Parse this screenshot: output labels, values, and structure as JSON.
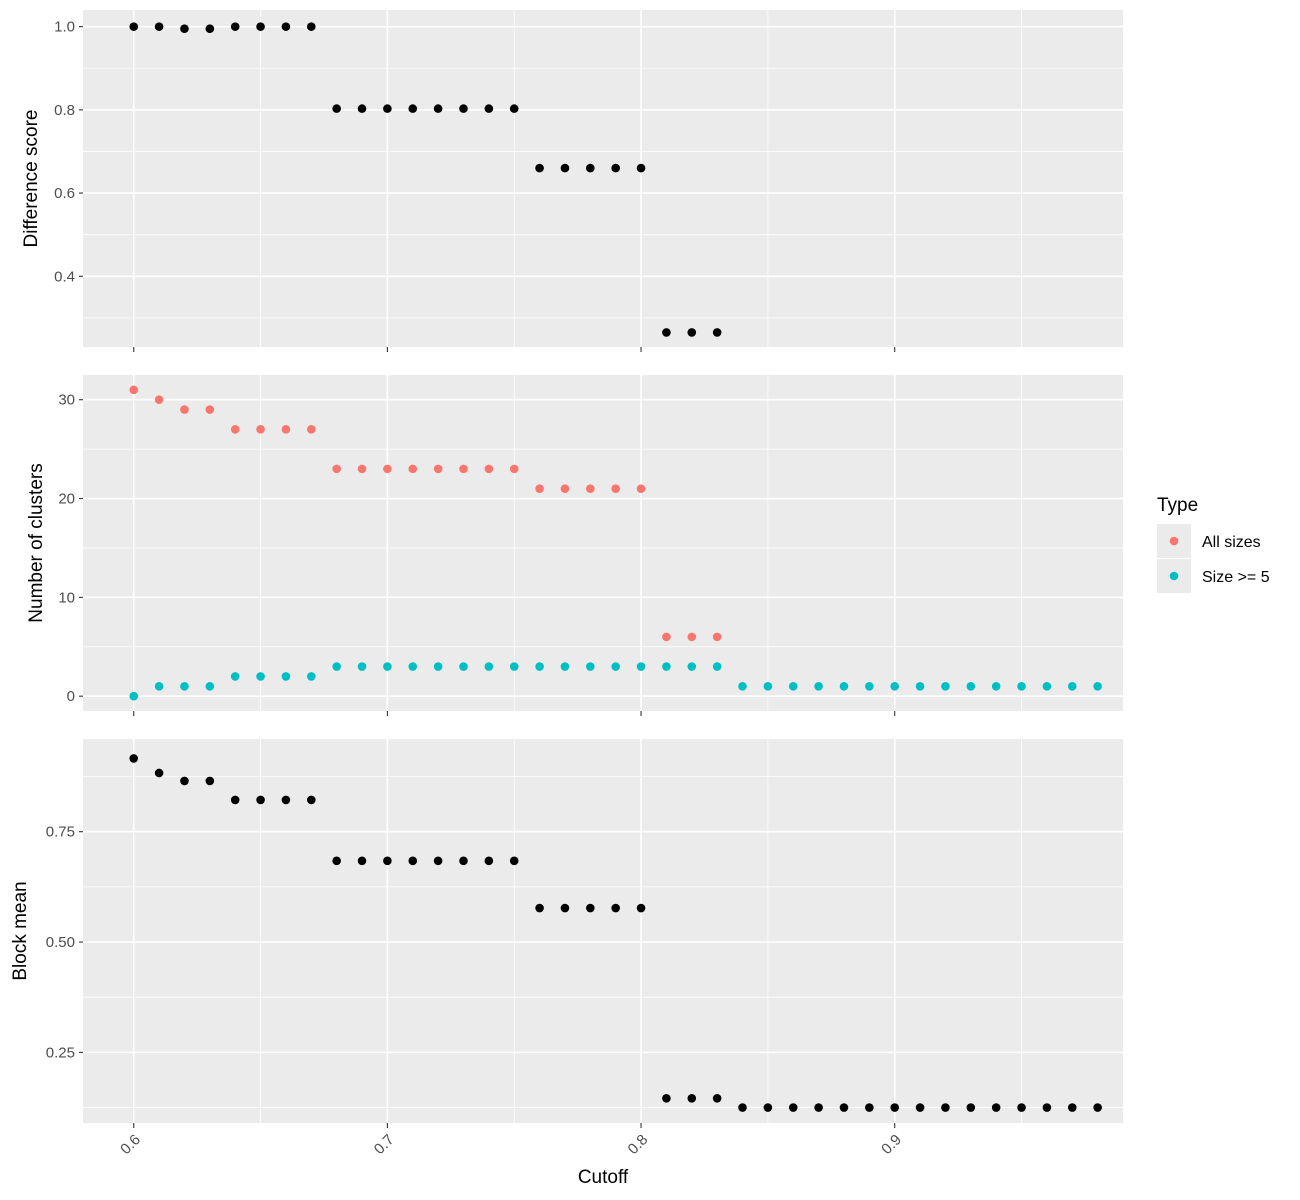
{
  "chart_data": [
    {
      "type": "scatter",
      "panel": "top",
      "ylabel": "Difference score",
      "yticks": [
        0.4,
        0.6,
        0.8,
        1.0
      ],
      "ytick_labels": [
        "0.4",
        "0.6",
        "0.8",
        "1.0"
      ],
      "ylim": [
        0.23,
        1.04
      ],
      "xlim": [
        0.58,
        0.99
      ],
      "grid": true,
      "series": [
        {
          "color": "#000000",
          "x": [
            0.6,
            0.61,
            0.62,
            0.63,
            0.64,
            0.65,
            0.66,
            0.67,
            0.68,
            0.69,
            0.7,
            0.71,
            0.72,
            0.73,
            0.74,
            0.75,
            0.76,
            0.77,
            0.78,
            0.79,
            0.8,
            0.81,
            0.82,
            0.83
          ],
          "y": [
            1.0,
            1.0,
            0.995,
            0.995,
            1.0,
            1.0,
            1.0,
            1.0,
            0.803,
            0.803,
            0.803,
            0.803,
            0.803,
            0.803,
            0.803,
            0.803,
            0.66,
            0.66,
            0.66,
            0.66,
            0.66,
            0.265,
            0.265,
            0.265
          ]
        }
      ]
    },
    {
      "type": "scatter",
      "panel": "middle",
      "ylabel": "Number of clusters",
      "yticks": [
        0,
        10,
        20,
        30
      ],
      "ytick_labels": [
        "0",
        "10",
        "20",
        "30"
      ],
      "ylim": [
        -1.5,
        32.5
      ],
      "xlim": [
        0.58,
        0.99
      ],
      "grid": true,
      "legend": {
        "title": "Type",
        "position": "right"
      },
      "series": [
        {
          "name": "All sizes",
          "color": "#F8766D",
          "x": [
            0.6,
            0.61,
            0.62,
            0.63,
            0.64,
            0.65,
            0.66,
            0.67,
            0.68,
            0.69,
            0.7,
            0.71,
            0.72,
            0.73,
            0.74,
            0.75,
            0.76,
            0.77,
            0.78,
            0.79,
            0.8,
            0.81,
            0.82,
            0.83
          ],
          "y": [
            31,
            30,
            29,
            29,
            27,
            27,
            27,
            27,
            23,
            23,
            23,
            23,
            23,
            23,
            23,
            23,
            21,
            21,
            21,
            21,
            21,
            6,
            6,
            6
          ]
        },
        {
          "name": "Size >= 5",
          "color": "#00BFC4",
          "x": [
            0.6,
            0.61,
            0.62,
            0.63,
            0.64,
            0.65,
            0.66,
            0.67,
            0.68,
            0.69,
            0.7,
            0.71,
            0.72,
            0.73,
            0.74,
            0.75,
            0.76,
            0.77,
            0.78,
            0.79,
            0.8,
            0.81,
            0.82,
            0.83,
            0.84,
            0.85,
            0.86,
            0.87,
            0.88,
            0.89,
            0.9,
            0.91,
            0.92,
            0.93,
            0.94,
            0.95,
            0.96,
            0.97,
            0.98
          ],
          "y": [
            0,
            1,
            1,
            1,
            2,
            2,
            2,
            2,
            3,
            3,
            3,
            3,
            3,
            3,
            3,
            3,
            3,
            3,
            3,
            3,
            3,
            3,
            3,
            3,
            1,
            1,
            1,
            1,
            1,
            1,
            1,
            1,
            1,
            1,
            1,
            1,
            1,
            1,
            1
          ]
        }
      ]
    },
    {
      "type": "scatter",
      "panel": "bottom",
      "ylabel": "Block mean",
      "xlabel": "Cutoff",
      "yticks": [
        0.25,
        0.5,
        0.75
      ],
      "ytick_labels": [
        "0.25",
        "0.50",
        "0.75"
      ],
      "ylim": [
        0.09,
        0.96
      ],
      "xlim": [
        0.58,
        0.99
      ],
      "xticks": [
        0.6,
        0.7,
        0.8,
        0.9
      ],
      "xtick_labels": [
        "0.6",
        "0.7",
        "0.8",
        "0.9"
      ],
      "grid": true,
      "series": [
        {
          "color": "#000000",
          "x": [
            0.6,
            0.61,
            0.62,
            0.63,
            0.64,
            0.65,
            0.66,
            0.67,
            0.68,
            0.69,
            0.7,
            0.71,
            0.72,
            0.73,
            0.74,
            0.75,
            0.76,
            0.77,
            0.78,
            0.79,
            0.8,
            0.81,
            0.82,
            0.83,
            0.84,
            0.85,
            0.86,
            0.87,
            0.88,
            0.89,
            0.9,
            0.91,
            0.92,
            0.93,
            0.94,
            0.95,
            0.96,
            0.97,
            0.98
          ],
          "y": [
            0.916,
            0.883,
            0.865,
            0.865,
            0.822,
            0.822,
            0.822,
            0.822,
            0.684,
            0.684,
            0.684,
            0.684,
            0.684,
            0.684,
            0.684,
            0.684,
            0.577,
            0.577,
            0.577,
            0.577,
            0.577,
            0.146,
            0.146,
            0.146,
            0.125,
            0.125,
            0.125,
            0.125,
            0.125,
            0.125,
            0.125,
            0.125,
            0.125,
            0.125,
            0.125,
            0.125,
            0.125,
            0.125,
            0.125
          ]
        }
      ]
    }
  ]
}
